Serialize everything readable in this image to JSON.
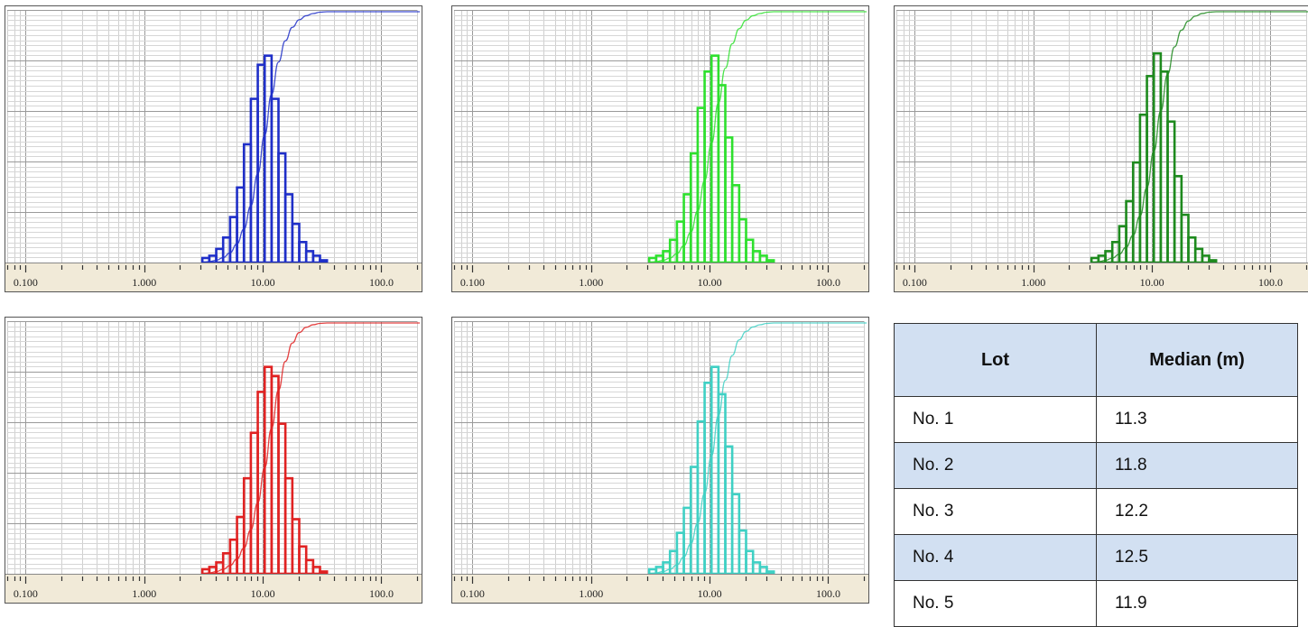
{
  "chart_data": [
    {
      "type": "bar",
      "lot": "No. 1",
      "color": "#1f2fc8",
      "xscale": "log",
      "xlim": [
        0.07,
        200
      ],
      "xtick_labels": [
        "0.100",
        "1.000",
        "10.00",
        "100.0"
      ],
      "grid": true,
      "bins": [
        3.31,
        3.79,
        4.33,
        4.96,
        5.67,
        6.49,
        7.42,
        8.49,
        9.71,
        11.1,
        12.7,
        14.5,
        16.6,
        19.0,
        21.7,
        24.9,
        28.4,
        32.5
      ],
      "values": [
        2,
        3,
        6,
        11,
        20,
        33,
        52,
        72,
        87,
        91,
        72,
        48,
        30,
        17,
        9,
        5,
        3,
        1
      ],
      "cumulative": true
    },
    {
      "type": "bar",
      "lot": "No. 2",
      "color": "#2ee02e",
      "xscale": "log",
      "xlim": [
        0.07,
        200
      ],
      "xtick_labels": [
        "0.100",
        "1.000",
        "10.00",
        "100.0"
      ],
      "grid": true,
      "bins": [
        3.31,
        3.79,
        4.33,
        4.96,
        5.67,
        6.49,
        7.42,
        8.49,
        9.71,
        11.1,
        12.7,
        14.5,
        16.6,
        19.0,
        21.7,
        24.9,
        28.4,
        32.5
      ],
      "values": [
        2,
        3,
        5,
        10,
        18,
        30,
        48,
        68,
        84,
        91,
        78,
        55,
        34,
        19,
        10,
        5,
        3,
        1
      ],
      "cumulative": true
    },
    {
      "type": "bar",
      "lot": "No. 3",
      "color": "#1e8a1e",
      "xscale": "log",
      "xlim": [
        0.07,
        200
      ],
      "xtick_labels": [
        "0.100",
        "1.000",
        "10.00",
        "100.0"
      ],
      "grid": true,
      "bins": [
        3.31,
        3.79,
        4.33,
        4.96,
        5.67,
        6.49,
        7.42,
        8.49,
        9.71,
        11.1,
        12.7,
        14.5,
        16.6,
        19.0,
        21.7,
        24.9,
        28.4,
        32.5
      ],
      "values": [
        2,
        3,
        5,
        9,
        16,
        27,
        44,
        65,
        82,
        92,
        84,
        62,
        38,
        21,
        11,
        6,
        3,
        1
      ],
      "cumulative": true
    },
    {
      "type": "bar",
      "lot": "No. 4",
      "color": "#e02222",
      "xscale": "log",
      "xlim": [
        0.07,
        200
      ],
      "xtick_labels": [
        "0.100",
        "1.000",
        "10.00",
        "100.0"
      ],
      "grid": true,
      "bins": [
        3.31,
        3.79,
        4.33,
        4.96,
        5.67,
        6.49,
        7.42,
        8.49,
        9.71,
        11.1,
        12.7,
        14.5,
        16.6,
        19.0,
        21.7,
        24.9,
        28.4,
        32.5
      ],
      "values": [
        2,
        3,
        5,
        9,
        15,
        25,
        42,
        62,
        80,
        91,
        87,
        66,
        42,
        24,
        12,
        6,
        3,
        1
      ],
      "cumulative": true
    },
    {
      "type": "bar",
      "lot": "No. 5",
      "color": "#3fd0c4",
      "xscale": "log",
      "xlim": [
        0.07,
        200
      ],
      "xtick_labels": [
        "0.100",
        "1.000",
        "10.00",
        "100.0"
      ],
      "grid": true,
      "bins": [
        3.31,
        3.79,
        4.33,
        4.96,
        5.67,
        6.49,
        7.42,
        8.49,
        9.71,
        11.1,
        12.7,
        14.5,
        16.6,
        19.0,
        21.7,
        24.9,
        28.4,
        32.5
      ],
      "values": [
        2,
        3,
        5,
        10,
        18,
        29,
        47,
        67,
        84,
        91,
        79,
        56,
        35,
        19,
        10,
        5,
        3,
        1
      ],
      "cumulative": true
    }
  ],
  "table": {
    "headers": [
      "Lot",
      "Median (m)"
    ],
    "rows": [
      {
        "lot": "No. 1",
        "median": "11.3"
      },
      {
        "lot": "No. 2",
        "median": "11.8"
      },
      {
        "lot": "No. 3",
        "median": "12.2"
      },
      {
        "lot": "No. 4",
        "median": "12.5"
      },
      {
        "lot": "No. 5",
        "median": "11.9"
      }
    ]
  }
}
